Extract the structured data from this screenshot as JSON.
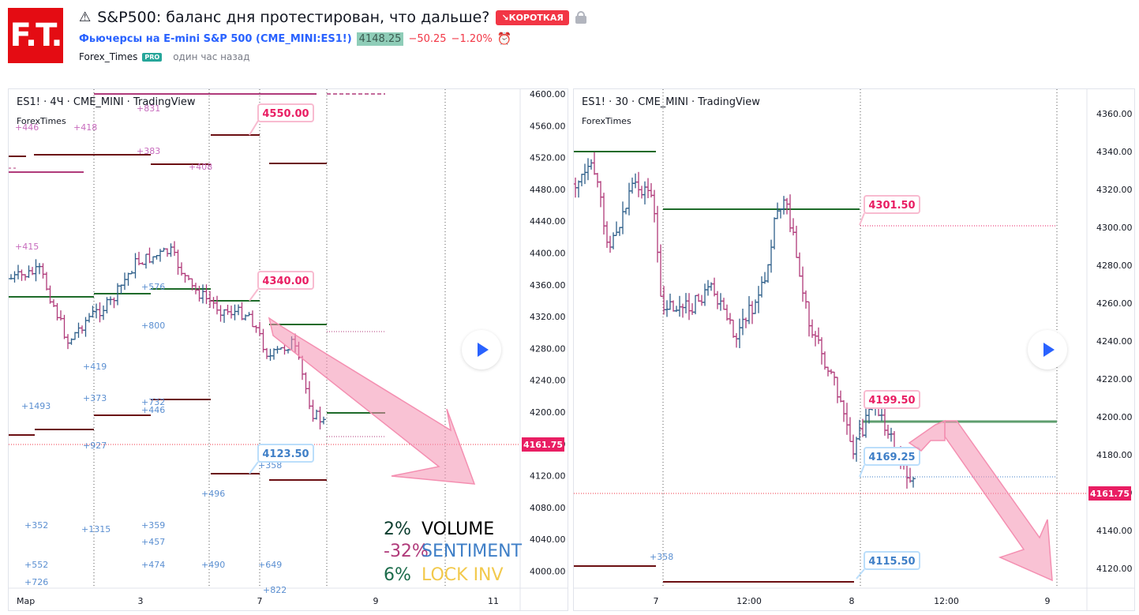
{
  "header": {
    "logo_text": "F.T.",
    "title": "S&P500: баланс дня протестирован, что дальше?",
    "warn_icon": "warning-icon",
    "direction_badge": "↘КОРОТКАЯ",
    "symbol_name": "Фьючерсы на E-mini S&P 500",
    "symbol_code": "(CME_MINI:ES1!)",
    "price": "4148.25",
    "change_abs": "−50.25",
    "change_pct": "−1.20%",
    "author": "Forex_Times",
    "pro_badge": "PRO",
    "time_ago": "один час назад"
  },
  "colors": {
    "accent": "#2962ff",
    "down": "#f23645",
    "bar_up": "#2e5f8a",
    "bar_down": "#b03a7a",
    "level_green": "#1e6b2a",
    "level_dark_red": "#6b0f12",
    "label_pink": "#e91e63",
    "label_blue": "#3f7fc7"
  },
  "left_chart": {
    "legend": "ES1! · 4Ч · CME_MINI · TradingView",
    "sublegend": "ForexTimes",
    "price_axis": [
      "4600.00",
      "4560.00",
      "4520.00",
      "4480.00",
      "4440.00",
      "4400.00",
      "4360.00",
      "4320.00",
      "4280.00",
      "4240.00",
      "4200.00",
      "4160.00",
      "4120.00",
      "4080.00",
      "4040.00",
      "4000.00"
    ],
    "time_axis": [
      "Мар",
      "3",
      "7",
      "9",
      "11"
    ],
    "last_price": "4161.75",
    "labels": [
      {
        "text": "4550.00",
        "color": "pink"
      },
      {
        "text": "4340.00",
        "color": "pink"
      },
      {
        "text": "4123.50",
        "color": "blue"
      }
    ],
    "volume_profile_labels": [
      {
        "text": "+446",
        "color": "pink"
      },
      {
        "text": "+418",
        "color": "pink"
      },
      {
        "text": "+383",
        "color": "pink"
      },
      {
        "text": "+408",
        "color": "pink"
      },
      {
        "text": "+831",
        "color": "pink"
      },
      {
        "text": "+415",
        "color": "pink"
      },
      {
        "text": "+576",
        "color": "blue"
      },
      {
        "text": "+800",
        "color": "blue"
      },
      {
        "text": "+419",
        "color": "blue"
      },
      {
        "text": "+373",
        "color": "blue"
      },
      {
        "text": "+732",
        "color": "blue"
      },
      {
        "text": "+446",
        "color": "blue"
      },
      {
        "text": "+1493",
        "color": "blue"
      },
      {
        "text": "+927",
        "color": "blue"
      },
      {
        "text": "+358",
        "color": "blue"
      },
      {
        "text": "+496",
        "color": "blue"
      },
      {
        "text": "+352",
        "color": "blue"
      },
      {
        "text": "+1315",
        "color": "blue"
      },
      {
        "text": "+359",
        "color": "blue"
      },
      {
        "text": "+457",
        "color": "blue"
      },
      {
        "text": "+552",
        "color": "blue"
      },
      {
        "text": "+474",
        "color": "blue"
      },
      {
        "text": "+490",
        "color": "blue"
      },
      {
        "text": "+649",
        "color": "blue"
      },
      {
        "text": "+726",
        "color": "blue"
      },
      {
        "text": "+822",
        "color": "blue"
      }
    ],
    "stats": [
      {
        "pct": "2%",
        "label": "VOLUME",
        "pct_color": "#0b3d2e",
        "label_color": "#000000"
      },
      {
        "pct": "-32%",
        "label": "SENTIMENT",
        "pct_color": "#b03a7a",
        "label_color": "#3f7fc7"
      },
      {
        "pct": "6%",
        "label": "LOCK INV",
        "pct_color": "#1b6b4a",
        "label_color": "#f2c94c"
      }
    ]
  },
  "right_chart": {
    "legend": "ES1! · 30 · CME_MINI · TradingView",
    "sublegend": "ForexTimes",
    "price_axis": [
      "4360.00",
      "4340.00",
      "4320.00",
      "4300.00",
      "4280.00",
      "4260.00",
      "4240.00",
      "4220.00",
      "4200.00",
      "4180.00",
      "4160.00",
      "4140.00",
      "4120.00"
    ],
    "time_axis": [
      "7",
      "12:00",
      "8",
      "12:00",
      "9"
    ],
    "last_price": "4161.75",
    "labels": [
      {
        "text": "4301.50",
        "color": "pink"
      },
      {
        "text": "4199.50",
        "color": "pink"
      },
      {
        "text": "4169.25",
        "color": "blue"
      },
      {
        "text": "4115.50",
        "color": "blue"
      }
    ],
    "volume_profile_labels": [
      {
        "text": "+358",
        "color": "blue"
      }
    ]
  }
}
